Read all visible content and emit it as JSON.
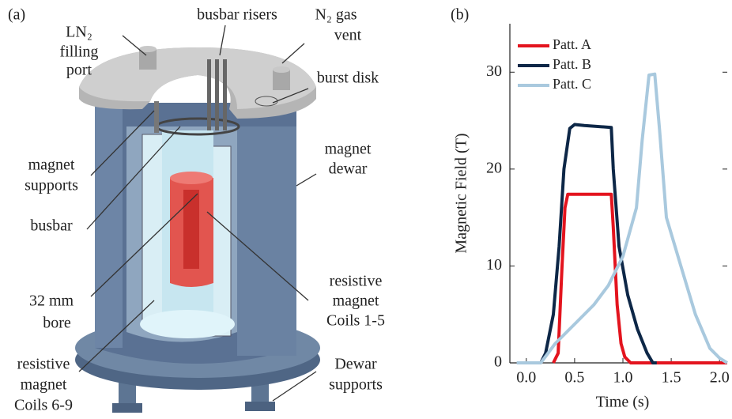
{
  "diagram": {
    "panel_label": "(a)",
    "labels": [
      [
        "LN₂",
        "filling",
        "port"
      ],
      [
        "busbar risers"
      ],
      [
        "N₂ gas",
        "vent"
      ],
      [
        "burst disk"
      ],
      [
        "magnet",
        "supports"
      ],
      [
        "magnet",
        "dewar"
      ],
      [
        "busbar"
      ],
      [
        "32 mm",
        "bore"
      ],
      [
        "resistive",
        "magnet",
        "Coils 1-5"
      ],
      [
        "resistive",
        "magnet",
        "Coils 6-9"
      ],
      [
        "Dewar",
        "supports"
      ]
    ]
  },
  "chart_data": {
    "type": "line",
    "panel_label": "(b)",
    "xlabel": "Time (s)",
    "ylabel": "Magnetic Field (T)",
    "xlim": [
      -0.17,
      2.08
    ],
    "ylim": [
      0,
      35
    ],
    "xticks": [
      {
        "value": 0,
        "label": "0.0"
      },
      0.5,
      {
        "value": 1,
        "label": "1.0"
      },
      1.5,
      {
        "value": 2,
        "label": "2.0"
      }
    ],
    "yticks": [
      0,
      10,
      20,
      30
    ],
    "legend": "upper-left",
    "series": [
      {
        "name": "Patt. A",
        "color": "#e3141e",
        "x": [
          0.28,
          0.33,
          0.37,
          0.4,
          0.43,
          0.88,
          0.9,
          0.94,
          0.98,
          1.02,
          1.08,
          2.08
        ],
        "values": [
          0,
          1,
          10,
          16,
          17.4,
          17.4,
          14,
          6,
          2,
          0.6,
          0,
          0
        ]
      },
      {
        "name": "Patt. B",
        "color": "#0d2747",
        "x": [
          0.15,
          0.2,
          0.28,
          0.34,
          0.39,
          0.45,
          0.5,
          0.6,
          0.88,
          0.9,
          0.96,
          1.05,
          1.15,
          1.25,
          1.31,
          1.35
        ],
        "values": [
          0,
          1,
          5,
          12,
          20,
          24.2,
          24.6,
          24.5,
          24.3,
          20,
          12,
          7,
          3.5,
          1,
          0,
          0
        ]
      },
      {
        "name": "Patt. C",
        "color": "#a9c9de",
        "x": [
          -0.1,
          0.15,
          0.3,
          0.5,
          0.7,
          0.85,
          1.0,
          1.14,
          1.2,
          1.27,
          1.33,
          1.38,
          1.45,
          1.6,
          1.75,
          1.9,
          2.0,
          2.08
        ],
        "values": [
          0,
          0,
          2,
          4,
          6,
          8,
          11,
          16,
          23,
          29.7,
          29.8,
          24,
          15,
          10,
          5,
          1.5,
          0.5,
          0
        ]
      }
    ]
  }
}
